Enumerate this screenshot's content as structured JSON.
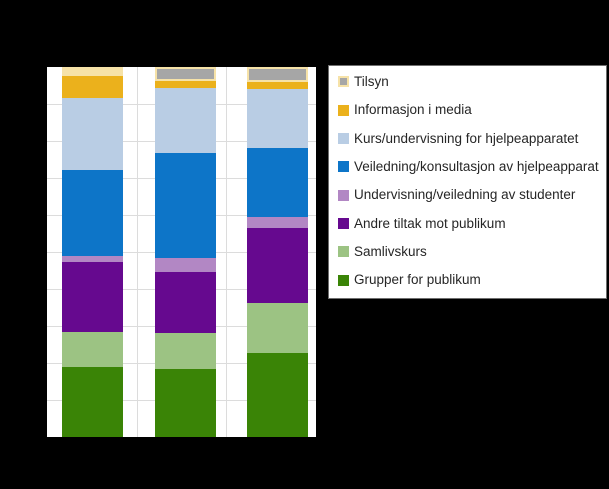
{
  "page": {
    "background_color": "#000000",
    "plot_background_color": "#ffffff",
    "gridline_color": "#DCDCDC",
    "legend_border_color": "#6e6e6e",
    "legend_text_color": "#262626",
    "highlight_color": "#F6E2A8"
  },
  "chart_data": {
    "type": "bar",
    "subtype": "stacked-percent-column",
    "orientation": "vertical",
    "categories": [
      "",
      "",
      ""
    ],
    "series": [
      {
        "name": "Tilsyn",
        "color": "#A6A6A6",
        "values": [
          2.4,
          3.8,
          4.0
        ],
        "highlighted": true,
        "point_colors": [
          "#F6E2A8",
          null,
          null
        ]
      },
      {
        "name": "Informasjon i media",
        "color": "#EBB11C",
        "values": [
          5.9,
          1.9,
          1.9
        ]
      },
      {
        "name": "Kurs/undervisning for hjelpeapparatet",
        "color": "#B9CDE4",
        "values": [
          19.5,
          17.5,
          16.1
        ]
      },
      {
        "name": "Veiledning/konsultasjon av hjelpeapparat",
        "color": "#0D75C8",
        "values": [
          23.2,
          28.4,
          18.6
        ]
      },
      {
        "name": "Undervisning/veiledning av studenter",
        "color": "#B287C4",
        "values": [
          1.7,
          3.8,
          2.8
        ]
      },
      {
        "name": "Andre tiltak mot publikum",
        "color": "#66098F",
        "values": [
          18.8,
          16.5,
          20.4
        ]
      },
      {
        "name": "Samlivskurs",
        "color": "#9CC383",
        "values": [
          9.5,
          9.6,
          13.5
        ]
      },
      {
        "name": "Grupper for publikum",
        "color": "#3A8406",
        "values": [
          19.0,
          18.5,
          22.7
        ]
      }
    ],
    "stack_order": "first series on top",
    "ylim": [
      0,
      100
    ],
    "y_axis": {
      "min": 0,
      "max": 100,
      "grid_interval": 10,
      "tick_labels_visible": false
    },
    "x_axis": {
      "tick_labels_visible": false,
      "category_separators": true
    },
    "grid": "horizontal light gray every 10%, vertical separators between categories",
    "legend_position": "right",
    "title": "",
    "xlabel": "",
    "ylabel": ""
  },
  "legend": {
    "items": [
      "Tilsyn",
      "Informasjon i media",
      "Kurs/undervisning for hjelpeapparatet",
      "Veiledning/konsultasjon av hjelpeapparat",
      "Undervisning/veiledning av studenter",
      "Andre tiltak mot publikum",
      "Samlivskurs",
      "Grupper for publikum"
    ]
  }
}
